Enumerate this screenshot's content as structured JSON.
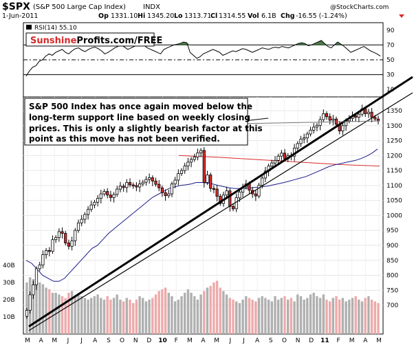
{
  "header": {
    "symbol": "$SPX",
    "name": "(S&P 500 Large Cap Index)",
    "exchange": "INDX",
    "date": "1-Jun-2011",
    "open_label": "Op",
    "open": "1331.10",
    "high_label": "Hi",
    "high": "1345.20",
    "low_label": "Lo",
    "low": "1313.71",
    "close_label": "Cl",
    "close": "1314.55",
    "vol_label": "Vol",
    "vol": "6.1B",
    "chg_label": "Chg",
    "chg": "-16.55 (-1.24%)",
    "watermark": "@StockCharts.com"
  },
  "rsi": {
    "legend": "RSI(14) 55.10",
    "ticks": [
      90,
      70,
      50,
      30,
      10
    ],
    "overbought": 70,
    "oversold": 30,
    "mid": 50,
    "logo_red": "Sunshine",
    "logo_black": "Profits.com/FREE",
    "values": [
      28,
      35,
      40,
      42,
      48,
      50,
      55,
      58,
      56,
      60,
      62,
      64,
      60,
      58,
      62,
      65,
      66,
      63,
      61,
      64,
      66,
      67,
      65,
      62,
      58,
      60,
      63,
      66,
      68,
      70,
      67,
      64,
      66,
      68,
      70,
      72,
      69,
      66,
      64,
      62,
      60,
      58,
      64,
      66,
      68,
      70,
      71,
      72,
      74,
      73,
      60,
      56,
      52,
      54,
      58,
      60,
      62,
      64,
      62,
      60,
      56,
      58,
      60,
      62,
      61,
      63,
      65,
      64,
      62,
      60,
      62,
      64,
      66,
      65,
      64,
      66,
      67,
      66,
      68,
      67,
      66,
      68,
      70,
      72,
      73,
      72,
      69,
      70,
      72,
      74,
      76,
      72,
      68,
      66,
      70,
      74,
      71,
      68,
      64,
      60,
      62,
      64,
      66,
      68,
      65,
      62,
      60,
      58,
      55
    ]
  },
  "annotation": {
    "line1": "S&P 500 Index has once again moved below the",
    "line2": "long-term support line based on weekly closing",
    "line3": "prices. This is only a slightly bearish factor at this",
    "line4": "point as this move has not been verified."
  },
  "chart_data": {
    "type": "candlestick",
    "price_ticks": [
      1350,
      1300,
      1250,
      1200,
      1150,
      1100,
      1050,
      1000,
      950,
      900,
      850,
      800,
      750,
      700
    ],
    "volume_ticks": [
      "40B",
      "30B",
      "20B",
      "10B"
    ],
    "x_labels": [
      "M",
      "A",
      "M",
      "J",
      "J",
      "A",
      "S",
      "O",
      "N",
      "D",
      "10",
      "F",
      "M",
      "A",
      "M",
      "J",
      "J",
      "A",
      "S",
      "O",
      "N",
      "D",
      "11",
      "F",
      "M",
      "A",
      "M"
    ],
    "closes": [
      683,
      735,
      768,
      822,
      834,
      869,
      883,
      880,
      919,
      926,
      946,
      940,
      908,
      897,
      915,
      950,
      975,
      987,
      1003,
      1020,
      1035,
      1044,
      1057,
      1072,
      1080,
      1068,
      1060,
      1070,
      1088,
      1098,
      1093,
      1110,
      1102,
      1100,
      1095,
      1105,
      1111,
      1120,
      1126,
      1115,
      1104,
      1092,
      1076,
      1066,
      1072,
      1105,
      1118,
      1140,
      1150,
      1165,
      1178,
      1187,
      1195,
      1209,
      1217,
      1110,
      1135,
      1090,
      1088,
      1064,
      1040,
      1068,
      1082,
      1030,
      1022,
      1059,
      1078,
      1095,
      1105,
      1084,
      1072,
      1065,
      1101,
      1125,
      1148,
      1165,
      1175,
      1184,
      1198,
      1208,
      1189,
      1200,
      1198,
      1225,
      1240,
      1255,
      1259,
      1272,
      1285,
      1295,
      1301,
      1320,
      1340,
      1330,
      1318,
      1322,
      1304,
      1282,
      1300,
      1316,
      1324,
      1333,
      1328,
      1338,
      1356,
      1340,
      1345,
      1328,
      1322,
      1315
    ],
    "ma50": [
      850,
      840,
      820,
      800,
      790,
      780,
      780,
      790,
      810,
      830,
      850,
      870,
      890,
      900,
      920,
      940,
      955,
      970,
      985,
      1000,
      1015,
      1030,
      1045,
      1060,
      1070,
      1080,
      1090,
      1095,
      1100,
      1102,
      1105,
      1110,
      1110,
      1108,
      1105,
      1100,
      1096,
      1092,
      1090,
      1090,
      1090,
      1092,
      1094,
      1096,
      1098,
      1102,
      1106,
      1110,
      1115,
      1120,
      1125,
      1130,
      1138,
      1146,
      1154,
      1162,
      1168,
      1172,
      1176,
      1180,
      1184,
      1190,
      1198,
      1208,
      1222
    ],
    "ma200": [
      1200,
      1194,
      1186,
      1178,
      1170,
      1165
    ],
    "volume_b": [
      30,
      33,
      32,
      31,
      30,
      29,
      27,
      26,
      24,
      24,
      23,
      22,
      21,
      24,
      25,
      22,
      23,
      22,
      21,
      20,
      21,
      22,
      23,
      21,
      20,
      22,
      20,
      21,
      23,
      20,
      19,
      21,
      20,
      18,
      20,
      22,
      21,
      19,
      20,
      21,
      23,
      25,
      26,
      27,
      24,
      22,
      19,
      20,
      22,
      24,
      26,
      24,
      22,
      20,
      23,
      25,
      27,
      28,
      30,
      31,
      27,
      25,
      23,
      21,
      20,
      19,
      18,
      20,
      22,
      21,
      20,
      19,
      21,
      22,
      21,
      20,
      19,
      22,
      20,
      21,
      22,
      20,
      21,
      19,
      23,
      22,
      20,
      21,
      23,
      24,
      22,
      21,
      23,
      20,
      19,
      21,
      22,
      20,
      21,
      19,
      20,
      21,
      22,
      20,
      19,
      21,
      22,
      20,
      19,
      18
    ]
  },
  "colors": {
    "up": "#ffffff",
    "down": "#d62a2a",
    "ma_blue": "#1a1a8c",
    "ma_red": "#d62a2a",
    "vol_gray": "#b0b0b0",
    "vol_red": "#eeaaaa",
    "rsi_fill": "#4c7a4c"
  }
}
